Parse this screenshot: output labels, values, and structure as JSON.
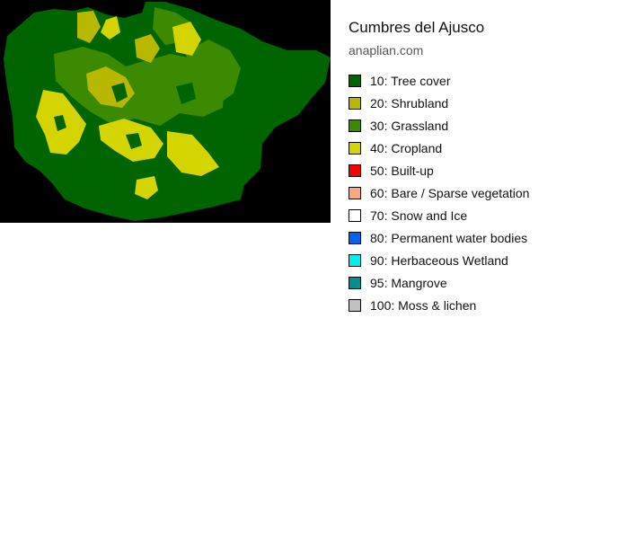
{
  "title": "Cumbres del Ajusco",
  "subtitle": "anaplian.com",
  "map": {
    "background": "#000000",
    "base_class_color": "#006400"
  },
  "legend": [
    {
      "label": "10: Tree cover",
      "color": "#006400"
    },
    {
      "label": "20: Shrubland",
      "color": "#b8b800"
    },
    {
      "label": "30: Grassland",
      "color": "#3c8a00"
    },
    {
      "label": "40: Cropland",
      "color": "#d4d400"
    },
    {
      "label": "50: Built-up",
      "color": "#fa0000"
    },
    {
      "label": "60: Bare / Sparse vegetation",
      "color": "#f8a882"
    },
    {
      "label": "70: Snow and Ice",
      "color": "#ffffff"
    },
    {
      "label": "80: Permanent water bodies",
      "color": "#0064f0"
    },
    {
      "label": "90: Herbaceous Wetland",
      "color": "#00f0f0"
    },
    {
      "label": "95: Mangrove",
      "color": "#009090"
    },
    {
      "label": "100: Moss & lichen",
      "color": "#c0c0c0"
    }
  ]
}
